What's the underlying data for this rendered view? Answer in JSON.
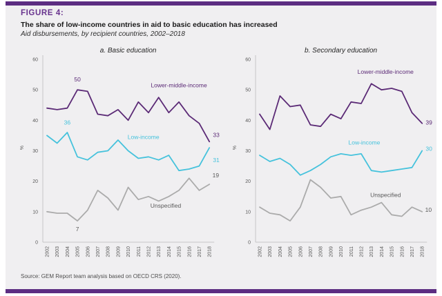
{
  "figure": {
    "label": "FIGURE 4:",
    "title": "The share of low-income countries in aid to basic education has increased",
    "subtitle": "Aid disbursements, by recipient countries, 2002–2018",
    "source": "Source: GEM Report team analysis based on OECD CRS (2020)."
  },
  "colors": {
    "accent_bar": "#5C2D82",
    "figure_label": "#68338E",
    "lower_middle_income": "#5B2A76",
    "low_income": "#45C2DC",
    "unspecified": "#ABABAB",
    "axis_text": "#595959",
    "panel_background": "#F0EFF1"
  },
  "chart_data": [
    {
      "type": "line",
      "title": "a. Basic education",
      "ylabel": "%",
      "ylim": [
        0,
        60
      ],
      "yticks": [
        0,
        10,
        20,
        30,
        40,
        50,
        60
      ],
      "grid": false,
      "legend": "inline-labels",
      "x": [
        2002,
        2003,
        2004,
        2005,
        2006,
        2007,
        2008,
        2009,
        2010,
        2011,
        2012,
        2013,
        2014,
        2015,
        2016,
        2017,
        2018
      ],
      "series": [
        {
          "name": "Lower-middle-income",
          "color": "#5B2A76",
          "values": [
            44,
            43.5,
            44,
            50,
            49.5,
            42,
            41.5,
            43.5,
            40,
            46,
            42.5,
            47.5,
            42.5,
            46,
            41.5,
            39,
            33
          ],
          "label_at": {
            "x": 2015,
            "y": 50.8
          },
          "annotations": [
            {
              "text": "50",
              "x": 2005,
              "y": 52.8,
              "anchor": "middle"
            },
            {
              "text": "33",
              "x": 2018.35,
              "y": 34.5,
              "anchor": "start"
            }
          ]
        },
        {
          "name": "Low-income",
          "color": "#45C2DC",
          "values": [
            35,
            32.5,
            36,
            28,
            27,
            29.5,
            30,
            33.5,
            30,
            27.5,
            28,
            27,
            28.5,
            23.5,
            24,
            25,
            31
          ],
          "label_at": {
            "x": 2011.5,
            "y": 33.8
          },
          "annotations": [
            {
              "text": "36",
              "x": 2004,
              "y": 38.6,
              "anchor": "middle"
            },
            {
              "text": "31",
              "x": 2018.35,
              "y": 26.3,
              "anchor": "start"
            }
          ]
        },
        {
          "name": "Unspecified",
          "color": "#ABABAB",
          "label_color": "#595959",
          "values": [
            10,
            9.5,
            9.5,
            7,
            10.5,
            17,
            14.5,
            10.5,
            18,
            14,
            15,
            13.5,
            15,
            17,
            21,
            17,
            19
          ],
          "label_at": {
            "x": 2013.7,
            "y": 11.3
          },
          "annotations": [
            {
              "text": "7",
              "x": 2005,
              "y": 3.6,
              "anchor": "middle"
            },
            {
              "text": "19",
              "x": 2018.3,
              "y": 21.3,
              "anchor": "start"
            }
          ]
        }
      ]
    },
    {
      "type": "line",
      "title": "b. Secondary education",
      "ylabel": "%",
      "ylim": [
        0,
        60
      ],
      "yticks": [
        0,
        10,
        20,
        30,
        40,
        50,
        60
      ],
      "grid": false,
      "legend": "inline-labels",
      "x": [
        2002,
        2003,
        2004,
        2005,
        2006,
        2007,
        2008,
        2009,
        2010,
        2011,
        2012,
        2013,
        2014,
        2015,
        2016,
        2017,
        2018
      ],
      "series": [
        {
          "name": "Lower-middle-income",
          "color": "#5B2A76",
          "values": [
            42,
            37,
            48,
            44.5,
            45,
            38.5,
            38,
            42,
            40.5,
            46,
            45.5,
            52,
            50,
            50.5,
            49.5,
            42.5,
            39
          ],
          "label_at": {
            "x": 2014.4,
            "y": 55.2
          },
          "annotations": [
            {
              "text": "39",
              "x": 2018.35,
              "y": 38.6,
              "anchor": "start"
            }
          ]
        },
        {
          "name": "Low-income",
          "color": "#45C2DC",
          "values": [
            28.5,
            26.5,
            27.5,
            25.5,
            22,
            23.5,
            25.5,
            28,
            29,
            28.5,
            29,
            23.5,
            23,
            23.5,
            24,
            24.5,
            30
          ],
          "label_at": {
            "x": 2012.3,
            "y": 32
          },
          "annotations": [
            {
              "text": "30",
              "x": 2018.35,
              "y": 30,
              "anchor": "start"
            }
          ]
        },
        {
          "name": "Unspecified",
          "color": "#ABABAB",
          "label_color": "#595959",
          "values": [
            11.5,
            9.5,
            9,
            7,
            11.5,
            20.5,
            18,
            14.5,
            15,
            9,
            10.5,
            11.5,
            13,
            9,
            8.5,
            11.5,
            10
          ],
          "label_at": {
            "x": 2014.4,
            "y": 14.8
          },
          "annotations": [
            {
              "text": "10",
              "x": 2018.3,
              "y": 10,
              "anchor": "start"
            }
          ]
        }
      ]
    }
  ]
}
